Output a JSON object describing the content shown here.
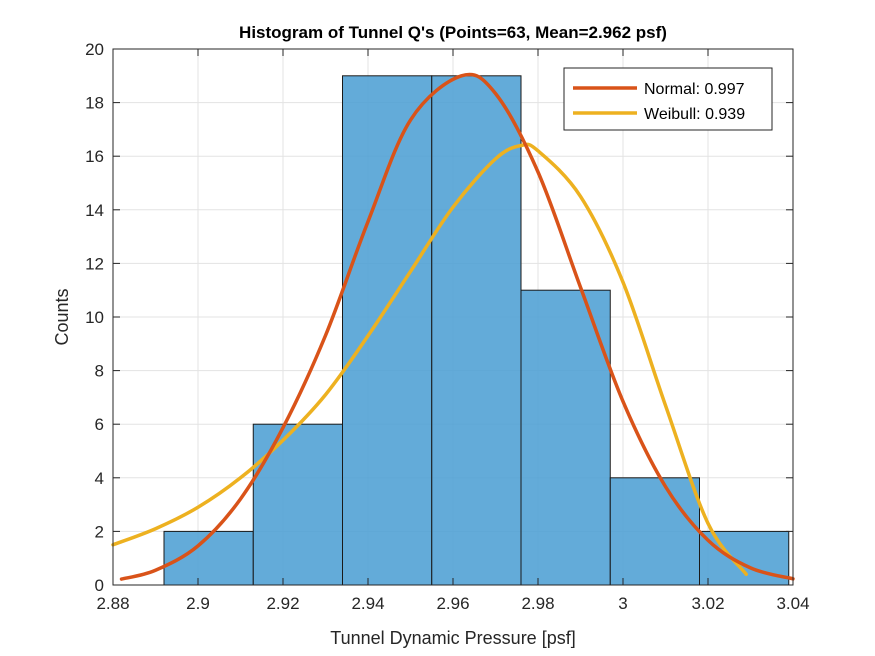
{
  "chart_data": {
    "type": "bar",
    "title": "Histogram of Tunnel Q's (Points=63, Mean=2.962 psf)",
    "xlabel": "Tunnel Dynamic Pressure [psf]",
    "ylabel": "Counts",
    "xlim": [
      2.88,
      3.04
    ],
    "ylim": [
      0,
      20
    ],
    "xticks": [
      2.88,
      2.9,
      2.92,
      2.94,
      2.96,
      2.98,
      3.0,
      3.02,
      3.04
    ],
    "xtick_labels": [
      "2.88",
      "2.9",
      "2.92",
      "2.94",
      "2.96",
      "2.98",
      "3",
      "3.02",
      "3.04"
    ],
    "yticks": [
      0,
      2,
      4,
      6,
      8,
      10,
      12,
      14,
      16,
      18,
      20
    ],
    "ytick_labels": [
      "0",
      "2",
      "4",
      "6",
      "8",
      "10",
      "12",
      "14",
      "16",
      "18",
      "20"
    ],
    "grid": true,
    "legend_location": "top-right",
    "bins": {
      "edges": [
        2.892,
        2.913,
        2.934,
        2.955,
        2.976,
        2.997,
        3.018,
        3.039
      ],
      "counts": [
        2,
        6,
        19,
        19,
        11,
        4,
        2
      ],
      "face_color": "#4d9fd4",
      "edge_color": "#1a1a1a"
    },
    "series": [
      {
        "name": "Normal: 0.997",
        "color": "#d95319",
        "x": [
          2.882,
          2.89,
          2.9,
          2.91,
          2.92,
          2.93,
          2.94,
          2.95,
          2.962,
          2.97,
          2.98,
          2.99,
          3.0,
          3.01,
          3.02,
          3.03,
          3.04
        ],
        "y": [
          0.22,
          0.55,
          1.46,
          3.21,
          5.87,
          9.31,
          13.56,
          17.35,
          19.0,
          18.34,
          15.41,
          11.11,
          6.85,
          3.67,
          1.67,
          0.64,
          0.23
        ]
      },
      {
        "name": "Weibull: 0.939",
        "color": "#edb120",
        "x": [
          2.88,
          2.89,
          2.9,
          2.91,
          2.92,
          2.93,
          2.94,
          2.95,
          2.96,
          2.97,
          2.976,
          2.98,
          2.99,
          3.0,
          3.01,
          3.02,
          3.029
        ],
        "y": [
          1.5,
          2.1,
          2.9,
          4.0,
          5.4,
          7.1,
          9.3,
          11.7,
          14.1,
          15.9,
          16.4,
          16.2,
          14.5,
          11.3,
          6.7,
          2.3,
          0.4
        ]
      }
    ]
  }
}
